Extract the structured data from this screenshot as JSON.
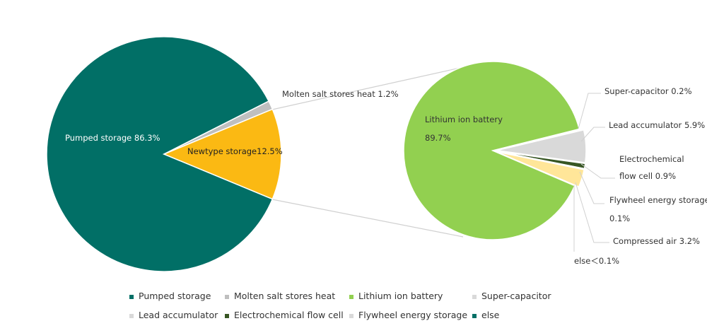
{
  "chart_data": [
    {
      "type": "pie",
      "categories": [
        "Pumped storage",
        "Molten salt stores heat",
        "Newtype storage"
      ],
      "values": [
        86.3,
        1.2,
        12.5
      ],
      "value_labels": [
        "86.3%",
        "1.2%",
        "12.5%"
      ],
      "colors": [
        "#016f66",
        "#bfbfbf",
        "#fbb913"
      ]
    },
    {
      "type": "pie",
      "categories": [
        "Lithium ion battery",
        "Super-capacitor",
        "Lead accumulator",
        "Electrochemical flow cell",
        "Flywheel energy storage",
        "Compressed air",
        "else"
      ],
      "values": [
        89.7,
        0.2,
        5.9,
        0.9,
        0.1,
        3.2,
        0.05
      ],
      "value_labels": [
        "89.7%",
        "0.2%",
        "5.9%",
        "0.9%",
        "0.1%",
        "3.2%",
        "＜0.1%"
      ],
      "colors": [
        "#92d050",
        "#d9d9d9",
        "#d9d9d9",
        "#375623",
        "#c9c9c9",
        "#ffe699",
        "#016f66"
      ]
    }
  ],
  "legend": [
    {
      "name": "Pumped storage",
      "color": "#016f66"
    },
    {
      "name": "Molten salt stores heat",
      "color": "#bfbfbf"
    },
    {
      "name": "Lithium ion battery",
      "color": "#92d050"
    },
    {
      "name": "Super-capacitor",
      "color": "#d9d9d9"
    },
    {
      "name": "Lead accumulator",
      "color": "#d9d9d9"
    },
    {
      "name": "Electrochemical flow cell",
      "color": "#375623"
    },
    {
      "name": "Flywheel energy storage",
      "color": "#d9d9d9"
    },
    {
      "name": "else",
      "color": "#016f66"
    }
  ]
}
